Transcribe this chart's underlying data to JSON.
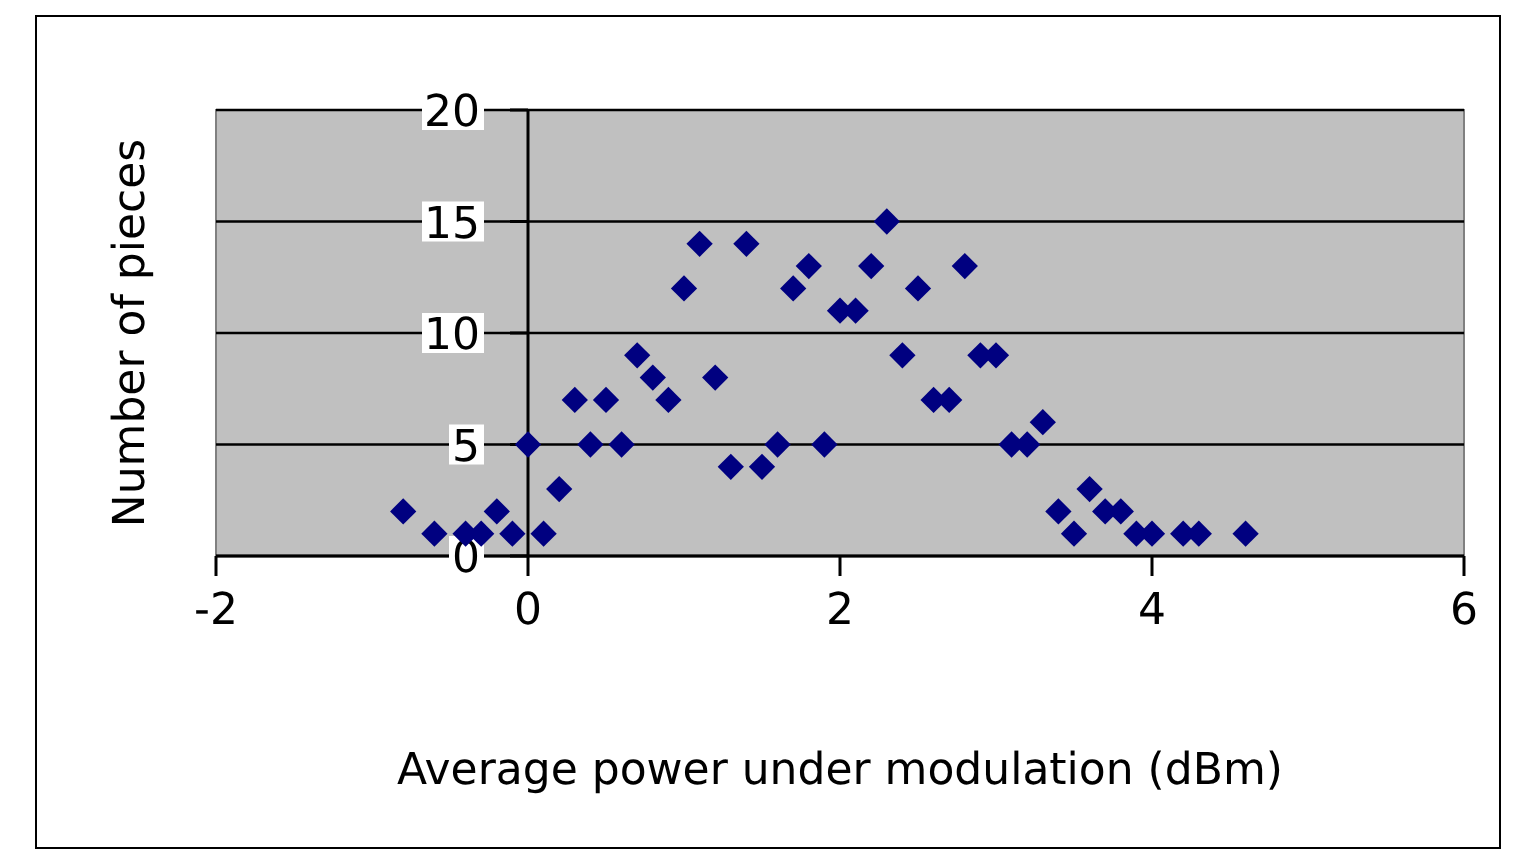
{
  "chart_data": {
    "type": "scatter",
    "xlabel": "Average power under modulation (dBm)",
    "ylabel": "Number of pieces",
    "x": [
      -0.8,
      -0.6,
      -0.4,
      -0.3,
      -0.2,
      -0.1,
      0,
      0.1,
      0.2,
      0.3,
      0.4,
      0.5,
      0.6,
      0.7,
      0.8,
      0.9,
      1.0,
      1.1,
      1.2,
      1.3,
      1.4,
      1.5,
      1.6,
      1.7,
      1.8,
      1.9,
      2.0,
      2.1,
      2.2,
      2.3,
      2.4,
      2.5,
      2.6,
      2.7,
      2.8,
      2.9,
      3.0,
      3.1,
      3.2,
      3.3,
      3.4,
      3.5,
      3.6,
      3.7,
      3.8,
      3.9,
      4.0,
      4.2,
      4.3,
      4.6
    ],
    "values": [
      2,
      1,
      1,
      1,
      2,
      1,
      5,
      1,
      3,
      7,
      5,
      7,
      5,
      9,
      8,
      7,
      12,
      14,
      8,
      4,
      14,
      4,
      5,
      12,
      13,
      5,
      11,
      11,
      13,
      15,
      9,
      12,
      7,
      7,
      13,
      9,
      9,
      5,
      5,
      6,
      2,
      1,
      3,
      2,
      2,
      1,
      1,
      1,
      1,
      1
    ],
    "color": "#000080",
    "marker": "diamond",
    "xlim": [
      -2,
      6
    ],
    "xticks": [
      -2,
      0,
      2,
      4,
      6
    ],
    "ylim": [
      0,
      20
    ],
    "yticks": [
      0,
      5,
      10,
      15,
      20
    ],
    "grid": "y"
  }
}
